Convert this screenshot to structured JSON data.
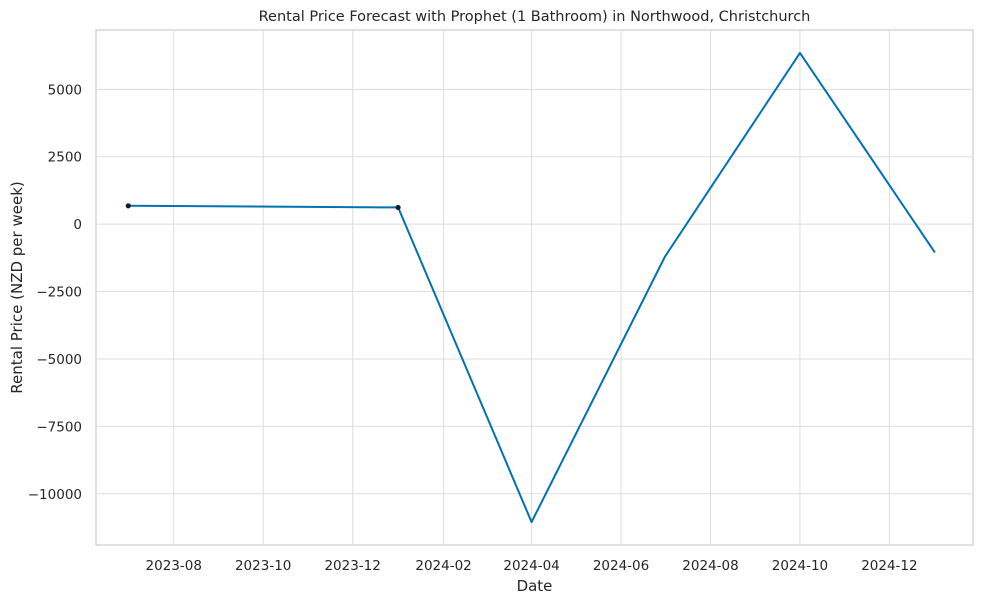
{
  "chart_data": {
    "type": "line",
    "title": "Rental Price Forecast with Prophet (1 Bathroom) in Northwood, Christchurch",
    "xlabel": "Date",
    "ylabel": "Rental Price (NZD per week)",
    "x_ticks": [
      "2023-08",
      "2023-10",
      "2023-12",
      "2024-02",
      "2024-04",
      "2024-06",
      "2024-08",
      "2024-10",
      "2024-12"
    ],
    "y_ticks": [
      5000,
      2500,
      0,
      -2500,
      -5000,
      -7500,
      -10000
    ],
    "y_tick_labels": [
      "5000",
      "2500",
      "0",
      "−2500",
      "−5000",
      "−7500",
      "−10000"
    ],
    "xlim": [
      "2023-06-09",
      "2025-01-27"
    ],
    "ylim": [
      -11900,
      7200
    ],
    "grid": true,
    "legend": "none",
    "series": [
      {
        "kind": "forecast-line",
        "color": "#0072b2",
        "x": [
          "2023-07-01",
          "2024-01-01",
          "2024-04-01",
          "2024-07-01",
          "2024-10-01",
          "2025-01-01"
        ],
        "y": [
          680,
          620,
          -11050,
          -1200,
          6350,
          -1050
        ]
      },
      {
        "kind": "observed-points",
        "color": "#0b1f2e",
        "x": [
          "2023-07-01",
          "2024-01-01"
        ],
        "y": [
          680,
          620
        ]
      }
    ]
  }
}
